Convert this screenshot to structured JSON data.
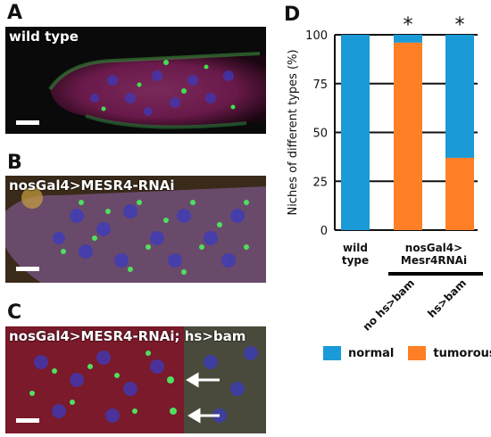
{
  "panels": {
    "A": {
      "letter": "A",
      "label": "wild type"
    },
    "B": {
      "letter": "B",
      "label": "nosGal4>MESR4-RNAi"
    },
    "C": {
      "letter": "C",
      "label": "nosGal4>MESR4-RNAi; hs>bam"
    },
    "D": {
      "letter": "D"
    }
  },
  "colors": {
    "normal": "#1a9ad6",
    "tumorous": "#ff7f27"
  },
  "chart_data": {
    "type": "bar",
    "stacked": true,
    "ylabel": "Niches of different types (%)",
    "ylim": [
      0,
      100
    ],
    "yticks": [
      "0",
      "25",
      "50",
      "75",
      "100"
    ],
    "categories": [
      "wild type",
      "no hs>bam",
      "hs>bam"
    ],
    "xgroup_label_line1": "nosGal4>",
    "xgroup_label_line2": "Mesr4RNAi",
    "category_labels": {
      "wt_line1": "wild",
      "wt_line2": "type",
      "rot1": "no hs>bam",
      "rot2": "hs>bam"
    },
    "series": [
      {
        "name": "tumorous",
        "values": [
          0,
          96,
          37
        ]
      },
      {
        "name": "normal",
        "values": [
          100,
          4,
          63
        ]
      }
    ],
    "significance": [
      "",
      "*",
      "*"
    ],
    "legend": [
      "normal",
      "tumorous"
    ],
    "legend_position": "bottom",
    "grid": true
  }
}
